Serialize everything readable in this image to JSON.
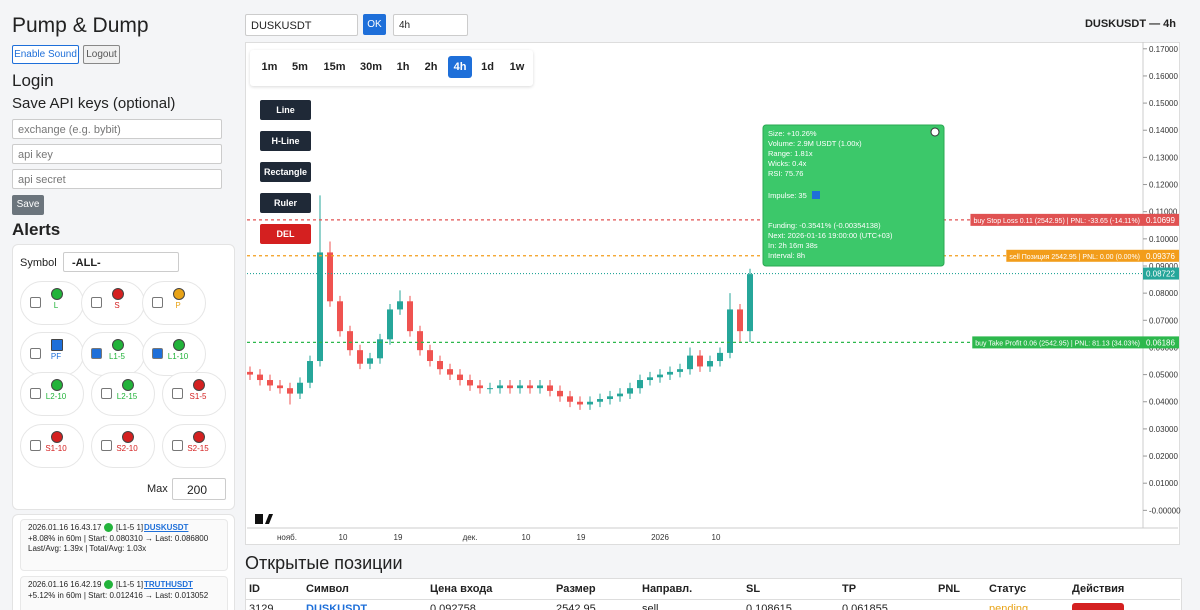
{
  "sidebar": {
    "title": "Pump & Dump",
    "buttons": [
      "Enable Sound",
      "Logout"
    ],
    "login": "Login",
    "api_heading": "Save API keys (optional)",
    "inputs": [
      "exchange (e.g. bybit)",
      "api key",
      "api secret"
    ],
    "save": "Save",
    "alerts": {
      "title": "Alerts",
      "symbol_label": "Symbol",
      "symbol_value": "-ALL-",
      "items": [
        {
          "label": "L",
          "color": "#22b33a",
          "checked": false
        },
        {
          "label": "S",
          "color": "#d42020",
          "checked": false
        },
        {
          "label": "P",
          "color": "#e8a317",
          "checked": false
        },
        {
          "label": "PF",
          "color": "#1e6fd9",
          "checked": false
        },
        {
          "label": "L1-5",
          "color": "#22b33a",
          "checked": true
        },
        {
          "label": "L1-10",
          "color": "#22b33a",
          "checked": true
        },
        {
          "label": "L2-10",
          "color": "#22b33a",
          "checked": false
        },
        {
          "label": "L2-15",
          "color": "#22b33a",
          "checked": false
        },
        {
          "label": "S1-5",
          "color": "#d42020",
          "checked": false
        },
        {
          "label": "S1-10",
          "color": "#d42020",
          "checked": false
        },
        {
          "label": "S2-10",
          "color": "#d42020",
          "checked": false
        },
        {
          "label": "S2-15",
          "color": "#d42020",
          "checked": false
        }
      ],
      "max_label": "Max",
      "max_value": 200
    },
    "log": [
      {
        "time": "2026.01.16 16.43.17",
        "tag": "[L1-5 1]",
        "symbol": "DUSKUSDT",
        "lines": [
          "+8.08% in 60m | Start: 0.080310 → Last: 0.086800",
          "Last/Avg: 1.39x | Total/Avg: 1.03x"
        ]
      },
      {
        "time": "2026.01.16 16.42.19",
        "tag": "[L1-5 1]",
        "symbol": "TRUTHUSDT",
        "lines": [
          "+5.12% in 60m | Start: 0.012416 → Last: 0.013052"
        ]
      }
    ]
  },
  "toolbar": {
    "symbol": "DUSKUSDT",
    "ok": "OK",
    "interval": "4h",
    "heading": "DUSKUSDT — 4h"
  },
  "chart_data": {
    "type": "candlestick",
    "timeframes": [
      "1m",
      "5m",
      "15m",
      "30m",
      "1h",
      "2h",
      "4h",
      "1d",
      "1w"
    ],
    "tools": [
      "Line",
      "H-Line",
      "Rectangle",
      "Ruler",
      "DEL"
    ],
    "up_color": "#26a69a",
    "down_color": "#ef5350",
    "candles": [
      [
        0.051,
        0.053,
        0.048,
        0.05
      ],
      [
        0.05,
        0.052,
        0.046,
        0.048
      ],
      [
        0.048,
        0.05,
        0.044,
        0.046
      ],
      [
        0.046,
        0.048,
        0.043,
        0.045
      ],
      [
        0.045,
        0.047,
        0.039,
        0.043
      ],
      [
        0.043,
        0.049,
        0.041,
        0.047
      ],
      [
        0.047,
        0.057,
        0.045,
        0.055
      ],
      [
        0.055,
        0.116,
        0.053,
        0.095
      ],
      [
        0.095,
        0.099,
        0.075,
        0.077
      ],
      [
        0.077,
        0.079,
        0.064,
        0.066
      ],
      [
        0.066,
        0.068,
        0.057,
        0.059
      ],
      [
        0.059,
        0.061,
        0.052,
        0.054
      ],
      [
        0.054,
        0.058,
        0.052,
        0.056
      ],
      [
        0.056,
        0.065,
        0.054,
        0.063
      ],
      [
        0.063,
        0.076,
        0.061,
        0.074
      ],
      [
        0.074,
        0.081,
        0.072,
        0.077
      ],
      [
        0.077,
        0.079,
        0.064,
        0.066
      ],
      [
        0.066,
        0.068,
        0.057,
        0.059
      ],
      [
        0.059,
        0.061,
        0.053,
        0.055
      ],
      [
        0.055,
        0.057,
        0.05,
        0.052
      ],
      [
        0.052,
        0.054,
        0.048,
        0.05
      ],
      [
        0.05,
        0.052,
        0.046,
        0.048
      ],
      [
        0.048,
        0.05,
        0.044,
        0.046
      ],
      [
        0.046,
        0.048,
        0.043,
        0.045
      ],
      [
        0.045,
        0.047,
        0.043,
        0.045
      ],
      [
        0.045,
        0.048,
        0.043,
        0.046
      ],
      [
        0.046,
        0.048,
        0.043,
        0.045
      ],
      [
        0.045,
        0.048,
        0.043,
        0.046
      ],
      [
        0.046,
        0.048,
        0.043,
        0.045
      ],
      [
        0.045,
        0.048,
        0.043,
        0.046
      ],
      [
        0.046,
        0.048,
        0.042,
        0.044
      ],
      [
        0.044,
        0.046,
        0.04,
        0.042
      ],
      [
        0.042,
        0.044,
        0.038,
        0.04
      ],
      [
        0.04,
        0.042,
        0.037,
        0.039
      ],
      [
        0.039,
        0.042,
        0.037,
        0.04
      ],
      [
        0.04,
        0.043,
        0.038,
        0.041
      ],
      [
        0.041,
        0.044,
        0.039,
        0.042
      ],
      [
        0.042,
        0.045,
        0.04,
        0.043
      ],
      [
        0.043,
        0.047,
        0.041,
        0.045
      ],
      [
        0.045,
        0.05,
        0.043,
        0.048
      ],
      [
        0.048,
        0.051,
        0.046,
        0.049
      ],
      [
        0.049,
        0.052,
        0.047,
        0.05
      ],
      [
        0.05,
        0.053,
        0.048,
        0.051
      ],
      [
        0.051,
        0.054,
        0.049,
        0.052
      ],
      [
        0.052,
        0.06,
        0.05,
        0.057
      ],
      [
        0.057,
        0.059,
        0.051,
        0.053
      ],
      [
        0.053,
        0.057,
        0.051,
        0.055
      ],
      [
        0.055,
        0.06,
        0.053,
        0.058
      ],
      [
        0.058,
        0.08,
        0.056,
        0.074
      ],
      [
        0.074,
        0.076,
        0.062,
        0.066
      ],
      [
        0.066,
        0.089,
        0.062,
        0.087
      ]
    ],
    "xlim": [
      -0.3,
      89.3
    ],
    "xticks": [
      {
        "value": 3.7,
        "label": "нояб."
      },
      {
        "value": 9.3,
        "label": "10"
      },
      {
        "value": 14.8,
        "label": "19"
      },
      {
        "value": 22,
        "label": "дек."
      },
      {
        "value": 27.6,
        "label": "10"
      },
      {
        "value": 33.1,
        "label": "19"
      },
      {
        "value": 41,
        "label": "2026"
      },
      {
        "value": 46.6,
        "label": "10"
      }
    ],
    "ylim": [
      -0.0065,
      0.1725
    ],
    "yticks": [
      {
        "value": 0.17,
        "label": "0.17000"
      },
      {
        "value": 0.16,
        "label": "0.16000"
      },
      {
        "value": 0.15,
        "label": "0.15000"
      },
      {
        "value": 0.14,
        "label": "0.14000"
      },
      {
        "value": 0.13,
        "label": "0.13000"
      },
      {
        "value": 0.12,
        "label": "0.12000"
      },
      {
        "value": 0.11,
        "label": "0.11000"
      },
      {
        "value": 0.1,
        "label": "0.10000"
      },
      {
        "value": 0.09,
        "label": "0.09000"
      },
      {
        "value": 0.08,
        "label": "0.08000"
      },
      {
        "value": 0.07,
        "label": "0.07000"
      },
      {
        "value": 0.06,
        "label": "0.06000"
      },
      {
        "value": 0.05,
        "label": "0.05000"
      },
      {
        "value": 0.04,
        "label": "0.04000"
      },
      {
        "value": 0.03,
        "label": "0.03000"
      },
      {
        "value": 0.02,
        "label": "0.02000"
      },
      {
        "value": 0.01,
        "label": "0.01000"
      },
      {
        "value": 0,
        "label": "-0.00000"
      }
    ],
    "levels": [
      {
        "name": "buy Stop Loss 0.11 (2542.95) | PNL: -33.65 (-14.11%)",
        "value": 0.10699,
        "color": "#e05252"
      },
      {
        "name": "sell Позиция 2542.95 | PNL: 0.00 (0.00%)",
        "value": 0.09376,
        "color": "#f29d1b"
      },
      {
        "value": 0.08722,
        "color": "#26a69a"
      },
      {
        "name": "buy Take Profit 0.06 (2542.95) | PNL: 81.13 (34.03%)",
        "value": 0.06186,
        "color": "#2db84d"
      }
    ],
    "tooltip": {
      "stats": [
        "Size: +10.26%",
        "Volume: 2.9M USDT (1.00x)",
        "Range: 1.81x",
        "Wicks: 0.4x",
        "RSI: 75.76"
      ],
      "impulse": "Impulse: 35",
      "timing": [
        "Funding: -0.3541% (-0.00354138)",
        "Next: 2026-01-16 19:00:00 (UTC+03)",
        "In: 2h 16m 38s",
        "Interval: 8h"
      ]
    }
  },
  "positions": {
    "title": "Открытые позиции",
    "columns": [
      "ID",
      "Символ",
      "Цена входа",
      "Размер",
      "Направл.",
      "SL",
      "TP",
      "PNL",
      "Статус",
      "Действия"
    ],
    "rows": [
      [
        "3129",
        "DUSKUSDT",
        "0.092758",
        "2542.95",
        "sell",
        "0.108615",
        "0.061855",
        null,
        "pending",
        null
      ]
    ]
  }
}
